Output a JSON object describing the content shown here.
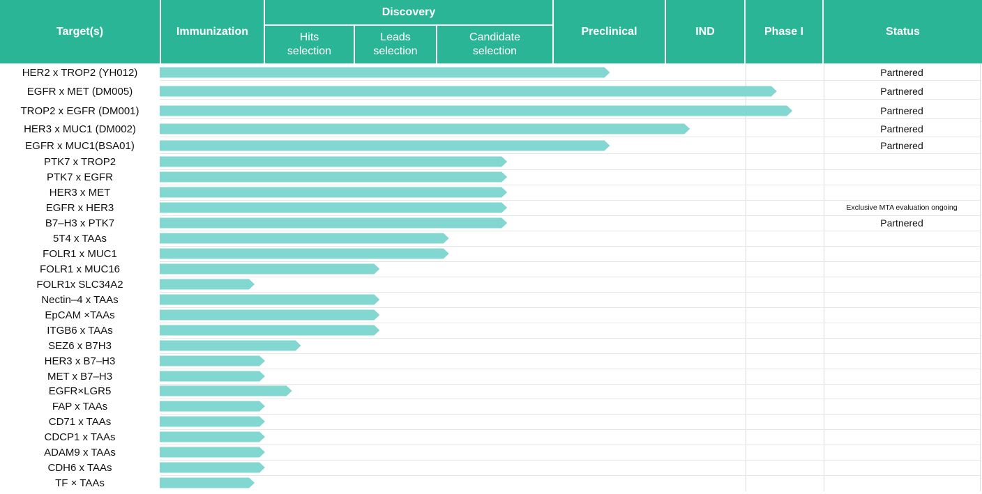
{
  "header": {
    "targets": "Target(s)",
    "immunization": "Immunization",
    "discovery": "Discovery",
    "hits": "Hits selection",
    "leads": "Leads selection",
    "candidate": "Candidate selection",
    "preclinical": "Preclinical",
    "ind": "IND",
    "phase1": "Phase I",
    "status": "Status"
  },
  "colors": {
    "header": "#2bb597",
    "bar": "#82d7d1"
  },
  "chart_data": {
    "type": "bar",
    "orientation": "horizontal",
    "stage_axis": [
      "Immunization",
      "Hits selection",
      "Leads selection",
      "Candidate selection",
      "Preclinical",
      "IND",
      "Phase I"
    ],
    "note": "progress values are fractions of the stage axis (0 = start of Immunization, 7 = end of Phase I)",
    "categories": [
      "HER2 x TROP2 (YH012)",
      "EGFR x MET (DM005)",
      "TROP2 x EGFR (DM001)",
      "HER3 x MUC1 (DM002)",
      "EGFR x MUC1(BSA01)",
      "PTK7 x TROP2",
      "PTK7 x EGFR",
      "HER3 x MET",
      "EGFR x HER3",
      "B7–H3 x PTK7",
      "5T4 x TAAs",
      "FOLR1 x MUC1",
      "FOLR1 x MUC16",
      "FOLR1x SLC34A2",
      "Nectin–4 x TAAs",
      "EpCAM ×TAAs",
      "ITGB6 x TAAs",
      "SEZ6 x B7H3",
      "HER3 x B7–H3",
      "MET x B7–H3",
      "EGFR×LGR5",
      "FAP x TAAs",
      "CD71 x TAAs",
      "CDCP1 x TAAs",
      "ADAM9 x TAAs",
      "CDH6 x  TAAs",
      "TF × TAAs"
    ],
    "values": [
      4.5,
      6.4,
      6.6,
      5.3,
      4.5,
      3.6,
      3.6,
      3.6,
      3.6,
      3.6,
      3.1,
      3.1,
      2.3,
      0.9,
      2.3,
      2.3,
      2.3,
      1.4,
      1.0,
      1.0,
      1.3,
      1.0,
      1.0,
      1.0,
      1.0,
      1.0,
      0.9
    ],
    "status": [
      "Partnered",
      "Partnered",
      "Partnered",
      "Partnered",
      "Partnered",
      "",
      "",
      "",
      "Exclusive MTA evaluation ongoing",
      "Partnered",
      "",
      "",
      "",
      "",
      "",
      "",
      "",
      "",
      "",
      "",
      "",
      "",
      "",
      "",
      "",
      "",
      ""
    ]
  }
}
